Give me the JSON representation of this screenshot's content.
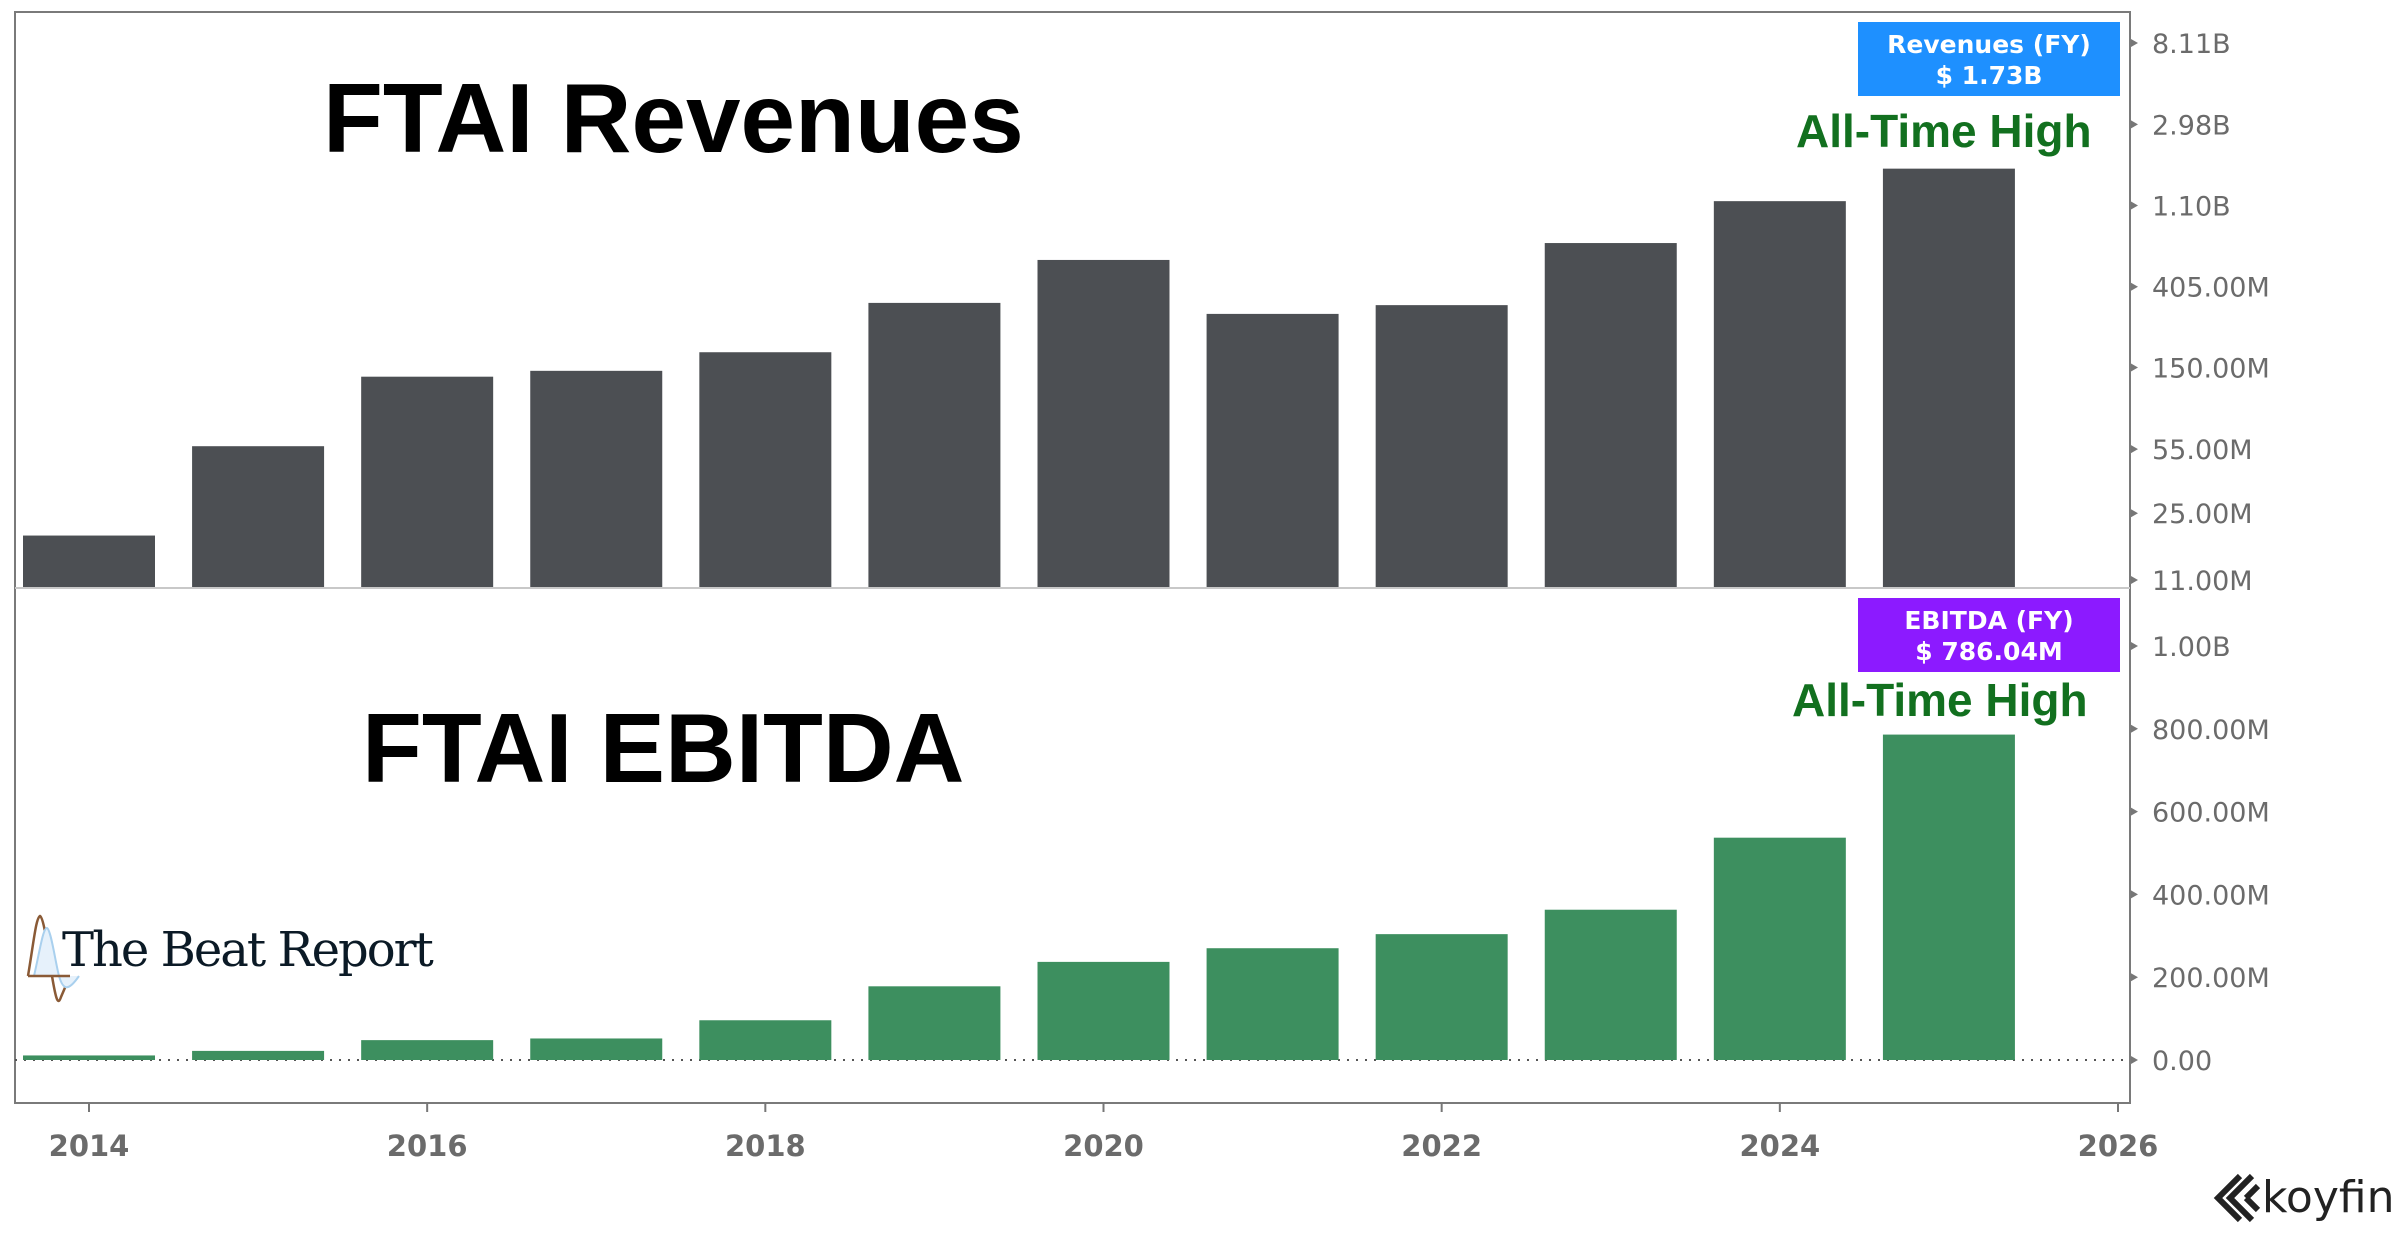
{
  "chart_data": [
    {
      "type": "bar",
      "title": "FTAI Revenues",
      "annotation": "All-Time High",
      "categories": [
        "2014",
        "2015",
        "2016",
        "2017",
        "2018",
        "2019",
        "2020",
        "2021",
        "2022",
        "2023",
        "2024",
        "2025"
      ],
      "series": [
        {
          "name": "Revenues (FY)",
          "values": [
            19000000,
            57000000,
            134000000,
            144000000,
            181000000,
            332000000,
            563000000,
            290000000,
            323000000,
            693000000,
            1160000000,
            1730000000
          ]
        }
      ],
      "y_scale": "log",
      "y_ticks": [
        {
          "value": 8110000000,
          "label": "8.11B"
        },
        {
          "value": 2980000000,
          "label": "2.98B"
        },
        {
          "value": 1100000000,
          "label": "1.10B"
        },
        {
          "value": 405000000,
          "label": "405.00M"
        },
        {
          "value": 150000000,
          "label": "150.00M"
        },
        {
          "value": 55000000,
          "label": "55.00M"
        },
        {
          "value": 25000000,
          "label": "25.00M"
        },
        {
          "value": 11000000,
          "label": "11.00M"
        }
      ],
      "ylim": [
        11000000,
        8110000000
      ],
      "badge": {
        "name": "Revenues (FY)",
        "value": "$ 1.73B",
        "color": "#1e90ff"
      },
      "bar_color": "#4c4f53",
      "grid": false
    },
    {
      "type": "bar",
      "title": "FTAI EBITDA",
      "annotation": "All-Time High",
      "categories": [
        "2014",
        "2015",
        "2016",
        "2017",
        "2018",
        "2019",
        "2020",
        "2021",
        "2022",
        "2023",
        "2024",
        "2025"
      ],
      "series": [
        {
          "name": "EBITDA (FY)",
          "values": [
            11000000,
            22000000,
            48000000,
            52000000,
            96000000,
            178000000,
            237000000,
            270000000,
            304000000,
            363000000,
            537000000,
            786040000
          ]
        }
      ],
      "y_scale": "linear",
      "y_ticks": [
        {
          "value": 1000000000,
          "label": "1.00B"
        },
        {
          "value": 800000000,
          "label": "800.00M"
        },
        {
          "value": 600000000,
          "label": "600.00M"
        },
        {
          "value": 400000000,
          "label": "400.00M"
        },
        {
          "value": 200000000,
          "label": "200.00M"
        },
        {
          "value": 0,
          "label": "0.00"
        }
      ],
      "ylim": [
        0,
        1000000000
      ],
      "badge": {
        "name": "EBITDA (FY)",
        "value": "$ 786.04M",
        "color": "#8c1aff"
      },
      "bar_color": "#3d8f5f",
      "grid": false
    }
  ],
  "x_axis": {
    "ticks": [
      "2014",
      "2016",
      "2018",
      "2020",
      "2022",
      "2024",
      "2026"
    ],
    "range": [
      2014,
      2026
    ]
  },
  "watermark": {
    "text": "The Beat Report"
  },
  "brand": {
    "text": "koyfin"
  }
}
